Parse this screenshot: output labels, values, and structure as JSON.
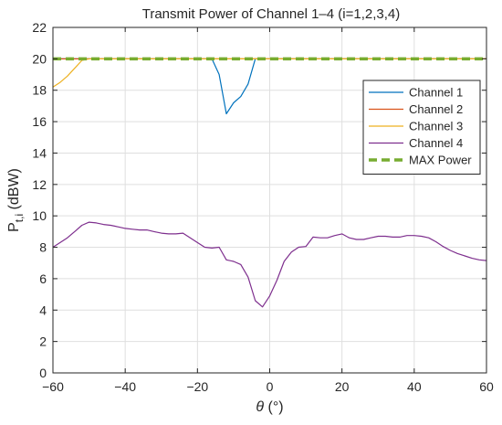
{
  "chart_data": {
    "type": "line",
    "title": "Transmit Power of Channel 1–4 (i=1,2,3,4)",
    "xlabel_symbol": "θ",
    "xlabel_unit": "(°)",
    "ylabel_main": "P",
    "ylabel_sub": "t,i",
    "ylabel_unit": "(dBW)",
    "xlim": [
      -60,
      60
    ],
    "ylim": [
      0,
      22
    ],
    "xticks": [
      -60,
      -40,
      -20,
      0,
      20,
      40,
      60
    ],
    "yticks": [
      0,
      2,
      4,
      6,
      8,
      10,
      12,
      14,
      16,
      18,
      20,
      22
    ],
    "grid": true,
    "legend_position": "upper right",
    "series": [
      {
        "name": "Channel 1",
        "color": "#0072BD",
        "dash": "solid",
        "x": [
          -60,
          -16,
          -14,
          -12,
          -10,
          -8,
          -6,
          -4,
          60
        ],
        "y": [
          20,
          20,
          19,
          16.5,
          17.2,
          17.6,
          18.4,
          20,
          20
        ]
      },
      {
        "name": "Channel 2",
        "color": "#D95319",
        "dash": "solid",
        "x": [
          -60,
          60
        ],
        "y": [
          20,
          20
        ]
      },
      {
        "name": "Channel 3",
        "color": "#EDB120",
        "dash": "solid",
        "x": [
          -60,
          -58,
          -56,
          -54,
          -52,
          -50,
          60
        ],
        "y": [
          18.2,
          18.5,
          18.9,
          19.4,
          19.9,
          20,
          20
        ]
      },
      {
        "name": "Channel 4",
        "color": "#7E2F8E",
        "dash": "solid",
        "x": [
          -60,
          -58,
          -56,
          -54,
          -52,
          -50,
          -48,
          -46,
          -44,
          -42,
          -40,
          -38,
          -36,
          -34,
          -32,
          -30,
          -28,
          -26,
          -24,
          -22,
          -20,
          -18,
          -16,
          -14,
          -12,
          -10,
          -8,
          -6,
          -4,
          -2,
          0,
          2,
          4,
          6,
          8,
          10,
          12,
          14,
          16,
          18,
          20,
          22,
          24,
          26,
          28,
          30,
          32,
          34,
          36,
          38,
          40,
          42,
          44,
          46,
          48,
          50,
          52,
          54,
          56,
          58,
          60
        ],
        "y": [
          8.0,
          8.3,
          8.6,
          9.0,
          9.4,
          9.6,
          9.55,
          9.45,
          9.4,
          9.3,
          9.2,
          9.15,
          9.1,
          9.1,
          9.0,
          8.9,
          8.85,
          8.85,
          8.9,
          8.6,
          8.3,
          8.0,
          7.95,
          8.0,
          7.2,
          7.1,
          6.9,
          6.1,
          4.6,
          4.2,
          4.9,
          5.9,
          7.1,
          7.7,
          8.0,
          8.05,
          8.65,
          8.6,
          8.6,
          8.75,
          8.85,
          8.6,
          8.5,
          8.5,
          8.6,
          8.7,
          8.7,
          8.65,
          8.65,
          8.75,
          8.75,
          8.7,
          8.6,
          8.35,
          8.05,
          7.8,
          7.6,
          7.45,
          7.3,
          7.2,
          7.15
        ]
      },
      {
        "name": "MAX Power",
        "color": "#77AC30",
        "dash": "dashed",
        "x": [
          -60,
          60
        ],
        "y": [
          20,
          20
        ]
      }
    ]
  }
}
